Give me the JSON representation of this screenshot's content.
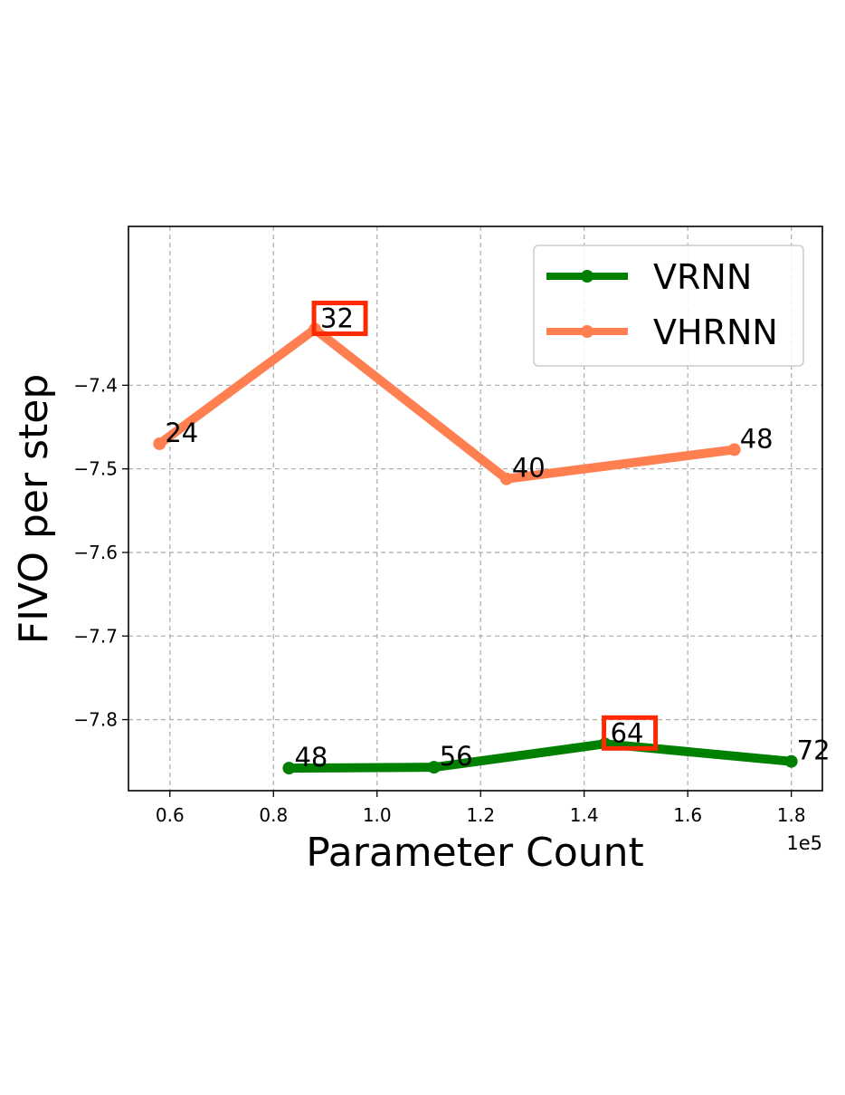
{
  "chart_data": {
    "type": "line",
    "xlabel": "Parameter Count",
    "ylabel": "FIVO per step",
    "x_offset_label": "1e5",
    "xlim": [
      0.52,
      1.86
    ],
    "ylim": [
      -7.885,
      -7.21
    ],
    "xticks": [
      0.6,
      0.8,
      1.0,
      1.2,
      1.4,
      1.6,
      1.8
    ],
    "xtick_labels": [
      "0.6",
      "0.8",
      "1.0",
      "1.2",
      "1.4",
      "1.6",
      "1.8"
    ],
    "yticks": [
      -7.4,
      -7.5,
      -7.6,
      -7.7,
      -7.8
    ],
    "ytick_labels": [
      "−7.4",
      "−7.5",
      "−7.6",
      "−7.7",
      "−7.8"
    ],
    "grid": true,
    "legend_position": "top-right",
    "series": [
      {
        "name": "VRNN",
        "color": "#008000",
        "x": [
          0.83,
          1.11,
          1.44,
          1.8
        ],
        "y": [
          -7.858,
          -7.857,
          -7.829,
          -7.85
        ],
        "labels": [
          "48",
          "56",
          "64",
          "72"
        ],
        "highlighted": [
          "64"
        ]
      },
      {
        "name": "VHRNN",
        "color": "#ff7f50",
        "x": [
          0.58,
          0.88,
          1.25,
          1.69
        ],
        "y": [
          -7.47,
          -7.333,
          -7.512,
          -7.477
        ],
        "labels": [
          "24",
          "32",
          "40",
          "48"
        ],
        "highlighted": [
          "32"
        ]
      }
    ],
    "highlight_color": "#ff2a00"
  }
}
